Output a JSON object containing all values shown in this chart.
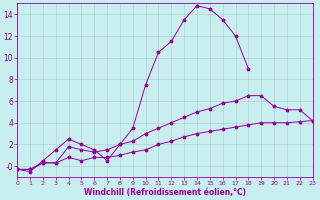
{
  "bg_color": "#c8eef0",
  "line_color": "#990099",
  "grid_color": "#a8ccc8",
  "xlim": [
    0,
    23
  ],
  "ylim": [
    -1,
    15
  ],
  "xticks": [
    0,
    1,
    2,
    3,
    4,
    5,
    6,
    7,
    8,
    9,
    10,
    11,
    12,
    13,
    14,
    15,
    16,
    17,
    18,
    19,
    20,
    21,
    22,
    23
  ],
  "yticks": [
    0,
    2,
    4,
    6,
    8,
    10,
    12,
    14
  ],
  "ytick_labels": [
    "-0",
    "2",
    "4",
    "6",
    "8",
    "10",
    "12",
    "14"
  ],
  "xlabel": "Windchill (Refroidissement éolien,°C)",
  "series1_x": [
    0,
    1,
    2,
    3,
    4,
    5,
    6,
    7,
    8,
    9,
    10,
    11,
    12,
    13,
    14,
    15,
    16,
    17,
    18
  ],
  "series1_y": [
    -0.3,
    -0.5,
    0.5,
    1.5,
    2.5,
    2.0,
    1.5,
    0.5,
    2.0,
    3.5,
    7.5,
    10.5,
    11.5,
    13.5,
    14.8,
    14.5,
    13.5,
    12.0,
    9.0
  ],
  "series2_x": [
    0,
    1,
    2,
    3,
    4,
    5,
    6,
    7,
    8,
    9,
    10,
    11,
    12,
    13,
    14,
    15,
    16,
    17,
    18,
    19,
    20,
    21,
    22,
    23
  ],
  "series2_y": [
    -0.3,
    -0.3,
    0.3,
    0.3,
    1.8,
    1.5,
    1.3,
    1.5,
    2.0,
    2.3,
    3.0,
    3.5,
    4.0,
    4.5,
    5.0,
    5.3,
    5.8,
    6.0,
    6.5,
    6.5,
    5.5,
    5.2,
    5.2,
    4.2
  ],
  "series3_x": [
    0,
    1,
    2,
    3,
    4,
    5,
    6,
    7,
    8,
    9,
    10,
    11,
    12,
    13,
    14,
    15,
    16,
    17,
    18,
    19,
    20,
    21,
    22,
    23
  ],
  "series3_y": [
    -0.3,
    -0.3,
    0.3,
    0.3,
    0.8,
    0.5,
    0.8,
    0.8,
    1.0,
    1.3,
    1.5,
    2.0,
    2.3,
    2.7,
    3.0,
    3.2,
    3.4,
    3.6,
    3.8,
    4.0,
    4.0,
    4.0,
    4.1,
    4.2
  ]
}
